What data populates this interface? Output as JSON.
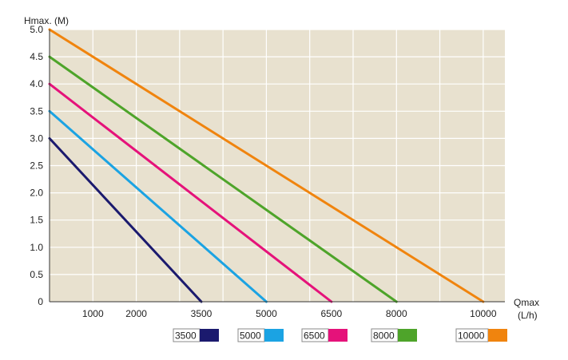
{
  "chart_data": {
    "type": "line",
    "title": "",
    "ylabel": "Hmax. (M)",
    "xlabel_line1": "Qmax",
    "xlabel_line2": "(L/h)",
    "xlim": [
      0,
      10500
    ],
    "ylim": [
      0,
      5.0
    ],
    "grid": true,
    "legend_placement": "bottom",
    "background_color": "#e8e1cf",
    "y_ticks": [
      "0",
      "0.5",
      "1.0",
      "1.5",
      "2.0",
      "2.5",
      "3.0",
      "3.5",
      "4.0",
      "4.5",
      "5.0"
    ],
    "x_ticks": [
      {
        "value": 1000,
        "label": "1000"
      },
      {
        "value": 2000,
        "label": "2000"
      },
      {
        "value": 3500,
        "label": "3500"
      },
      {
        "value": 5000,
        "label": "5000"
      },
      {
        "value": 6500,
        "label": "6500"
      },
      {
        "value": 8000,
        "label": "8000"
      },
      {
        "value": 10000,
        "label": "10000"
      }
    ],
    "x_grid_values": [
      1000,
      2000,
      3000,
      4000,
      5000,
      6000,
      7000,
      8000,
      9000,
      10000
    ],
    "series": [
      {
        "name": "3500",
        "color": "#1b1a6e",
        "points": [
          [
            0,
            3.0
          ],
          [
            3500,
            0
          ]
        ]
      },
      {
        "name": "5000",
        "color": "#1ba3e3",
        "points": [
          [
            0,
            3.5
          ],
          [
            5000,
            0
          ]
        ]
      },
      {
        "name": "6500",
        "color": "#e5127a",
        "points": [
          [
            0,
            4.0
          ],
          [
            6500,
            0
          ]
        ]
      },
      {
        "name": "8000",
        "color": "#4ea42a",
        "points": [
          [
            0,
            4.5
          ],
          [
            8000,
            0
          ]
        ]
      },
      {
        "name": "10000",
        "color": "#f0840e",
        "points": [
          [
            0,
            5.0
          ],
          [
            10000,
            0
          ]
        ]
      }
    ]
  }
}
